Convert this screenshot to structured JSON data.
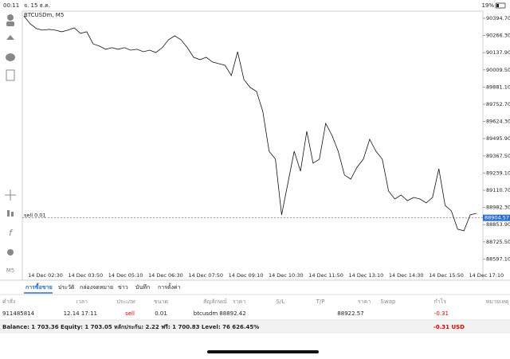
{
  "status_bar": {
    "time": "00:11",
    "date": "จ. 15 ธ.ค.",
    "battery": "19%"
  },
  "chart": {
    "type": "line",
    "title": "BTCUSDm, M5",
    "color": "#111111",
    "ylim": [
      88439,
      90448
    ],
    "yticks": [
      {
        "value": 90394.7,
        "label": "90394.70"
      },
      {
        "value": 90266.3,
        "label": "90266.30"
      },
      {
        "value": 90137.9,
        "label": "90137.90"
      },
      {
        "value": 90009.5,
        "label": "90009.50"
      },
      {
        "value": 89881.1,
        "label": "89881.10"
      },
      {
        "value": 89752.7,
        "label": "89752.70"
      },
      {
        "value": 89624.3,
        "label": "89624.30"
      },
      {
        "value": 89495.9,
        "label": "89495.90"
      },
      {
        "value": 89367.5,
        "label": "89367.50"
      },
      {
        "value": 89239.1,
        "label": "89239.10"
      },
      {
        "value": 89110.7,
        "label": "89110.70"
      },
      {
        "value": 88982.3,
        "label": "88982.30"
      },
      {
        "value": 88853.9,
        "label": "88853.90"
      },
      {
        "value": 88725.5,
        "label": "88725.50"
      },
      {
        "value": 88597.1,
        "label": "88597.10"
      }
    ],
    "xticks": [
      "14 Dec 02:30",
      "14 Dec 03:50",
      "14 Dec 05:10",
      "14 Dec 06:30",
      "14 Dec 07:50",
      "14 Dec 09:10",
      "14 Dec 10:30",
      "14 Dec 11:50",
      "14 Dec 13:10",
      "14 Dec 14:30",
      "14 Dec 15:50",
      "14 Dec 17:10"
    ],
    "values": [
      90412,
      90353,
      90317,
      90306,
      90312,
      90306,
      90294,
      90306,
      90323,
      90282,
      90294,
      90204,
      90187,
      90163,
      90175,
      90163,
      90175,
      90157,
      90163,
      90145,
      90157,
      90139,
      90175,
      90234,
      90264,
      90234,
      90175,
      90103,
      90086,
      90103,
      90068,
      90056,
      90044,
      89967,
      90145,
      89937,
      89878,
      89848,
      89699,
      89402,
      89343,
      88927,
      89164,
      89402,
      89253,
      89551,
      89313,
      89343,
      89610,
      89521,
      89402,
      89224,
      89194,
      89283,
      89343,
      89491,
      89402,
      89343,
      89105,
      89045,
      89075,
      89033,
      89057,
      89045,
      89016,
      89057,
      89271,
      88998,
      88956,
      88820,
      88808,
      88927,
      88938
    ],
    "current_price": 88904.57,
    "order_label": "sell 0.01"
  },
  "tabs": [
    "การซื้อขาย",
    "ประวัติ",
    "กล่องจดหมาย",
    "ข่าว",
    "บันทึก",
    "การตั้งค่า"
  ],
  "table": {
    "headers": [
      "คำสั่ง",
      "เวลา",
      "ประเภท",
      "ขนาด",
      "สัญลักษณ์",
      "ราคา",
      "S/L",
      "T/P",
      "ราคา",
      "Swap",
      "กำไร",
      "หมายเหตุ"
    ],
    "row": {
      "order": "911485814",
      "time": "12.14 17:11",
      "type": "sell",
      "size": "0.01",
      "symbol": "btcusdm",
      "open_price": "88892.42",
      "price": "88922.57",
      "profit": "-0.31"
    }
  },
  "footer": {
    "summary": "Balance: 1 703.36 Equity: 1 703.05 หลักประกัน: 2.22 ฟรี: 1 700.83 Level: 76 626.45%",
    "total": "-0.31 USD"
  }
}
